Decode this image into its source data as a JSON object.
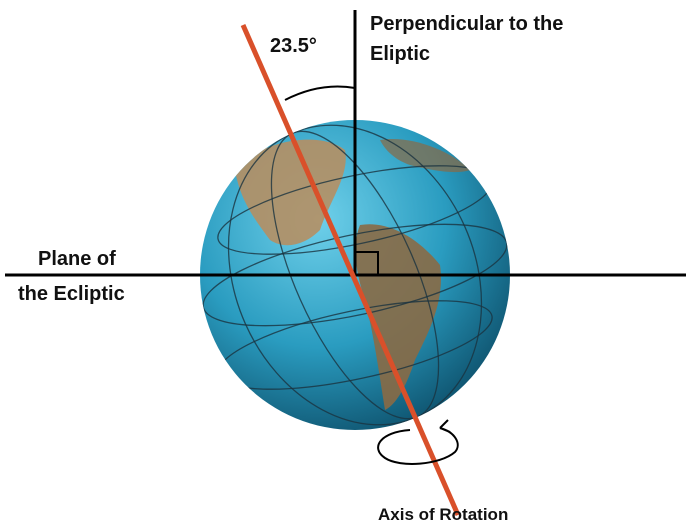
{
  "angle_label": "23.5°",
  "perpendicular_label": [
    "Perpendicular to the",
    "Eliptic"
  ],
  "plane_label": [
    "Plane of",
    "the Ecliptic"
  ],
  "axis_label": "Axis of Rotation"
}
